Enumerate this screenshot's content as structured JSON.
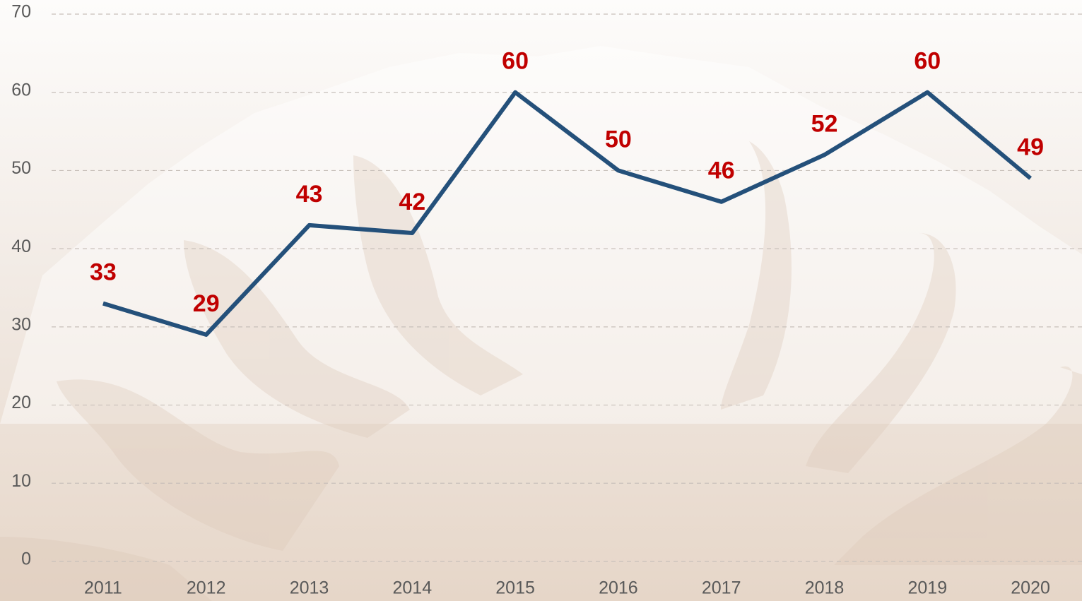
{
  "chart_data": {
    "type": "line",
    "categories": [
      "2011",
      "2012",
      "2013",
      "2014",
      "2015",
      "2016",
      "2017",
      "2018",
      "2019",
      "2020"
    ],
    "values": [
      33,
      29,
      43,
      42,
      60,
      50,
      46,
      52,
      60,
      49
    ],
    "color": "#24507a",
    "label_color": "#c00000",
    "ylim": [
      0,
      70
    ],
    "yticks": [
      0,
      10,
      20,
      30,
      40,
      50,
      60,
      70
    ],
    "grid": true
  }
}
